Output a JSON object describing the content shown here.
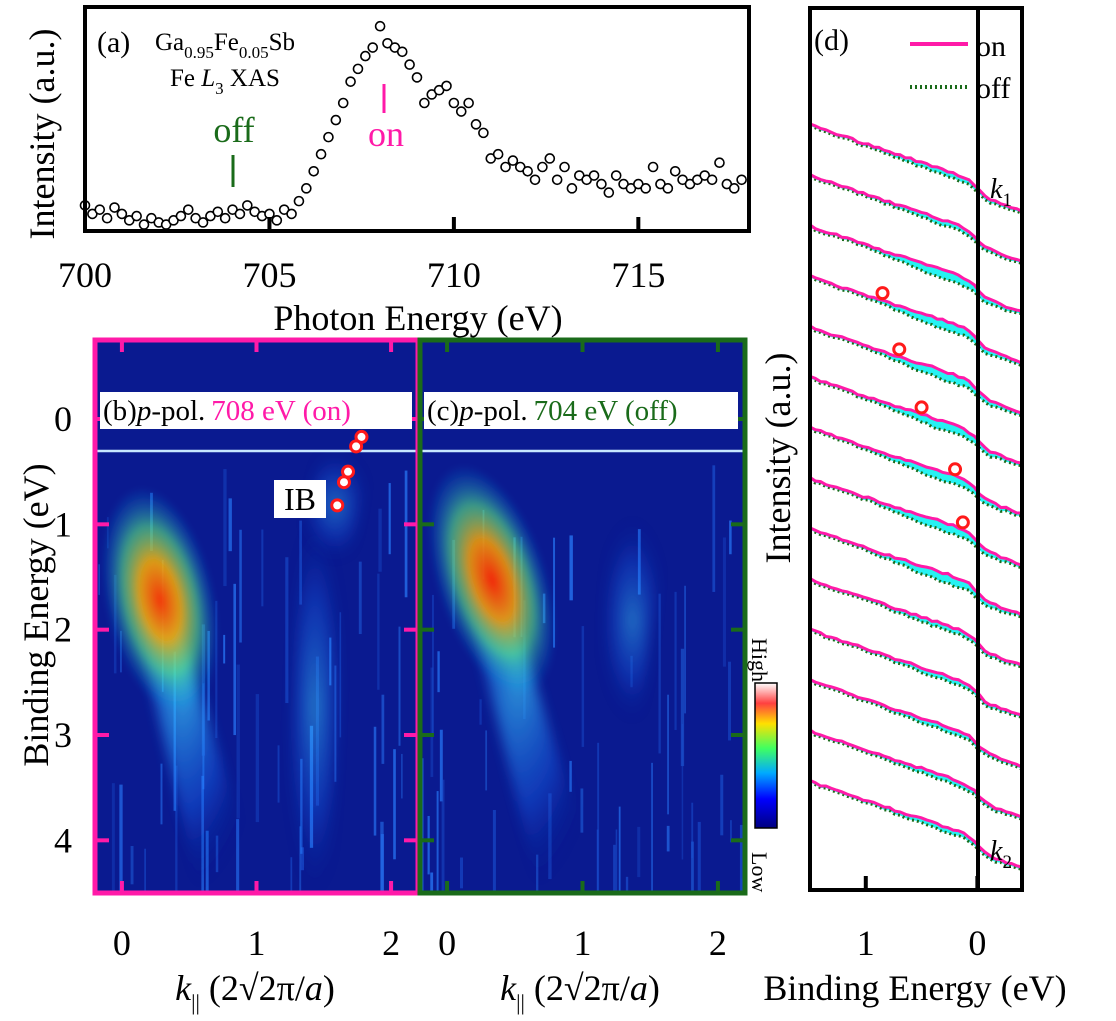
{
  "figure": {
    "panel_a": {
      "tag": "(a)",
      "sample": {
        "p1": "Ga",
        "s1": "0.95",
        "p2": "Fe",
        "s2": "0.05",
        "p3": "Sb"
      },
      "measurement": {
        "p1": "Fe ",
        "italic": "L",
        "sub": "3",
        "p2": " XAS"
      },
      "marker_off": "off",
      "marker_on": "on",
      "ylabel": "Intensity (a.u.)",
      "xlabel": "Photon Energy (eV)"
    },
    "panel_b": {
      "tag": "(b)",
      "pol": "p",
      "pol_suffix": "-pol.",
      "energy": "708 eV (on)",
      "annotation": "IB",
      "frame_color": "#ff1aa8"
    },
    "panel_c": {
      "tag": "(c)",
      "pol": "p",
      "pol_suffix": "-pol.",
      "energy": "704 eV (off)",
      "frame_color": "#1a6b1a"
    },
    "maps_axes": {
      "ylabel": "Binding Energy (eV)",
      "xlabel": {
        "k": "k",
        "sub": "||",
        "rest": " (2√2π/",
        "a": "a",
        "close": ")"
      },
      "colorbar_high": "High",
      "colorbar_low": "Low"
    },
    "panel_d": {
      "tag": "(d)",
      "legend_on": "on",
      "legend_off": "off",
      "ylabel": "Intensity (a.u.)",
      "xlabel": "Binding Energy (eV)",
      "label_k1": "k",
      "label_k1_sub": "1",
      "label_k2": "k",
      "label_k2_sub": "2"
    }
  },
  "colors": {
    "on": "#ff1aa8",
    "off": "#1a6b1a",
    "fill": "#00f0f0",
    "marker": "#ff1a1a",
    "map_background": "#0a1a90"
  },
  "chart_data": [
    {
      "id": "panel-a-xas",
      "type": "scatter",
      "xlabel": "Photon Energy (eV)",
      "ylabel": "Intensity (a.u.)",
      "xlim": [
        700,
        718
      ],
      "ylim": [
        0,
        1.05
      ],
      "xticks": [
        700,
        705,
        710,
        715
      ],
      "x": [
        700,
        700.2,
        700.4,
        700.6,
        700.8,
        701,
        701.2,
        701.4,
        701.6,
        701.8,
        702,
        702.2,
        702.4,
        702.6,
        702.8,
        703,
        703.2,
        703.4,
        703.6,
        703.8,
        704,
        704.2,
        704.4,
        704.6,
        704.8,
        705,
        705.2,
        705.4,
        705.6,
        705.8,
        706,
        706.2,
        706.4,
        706.6,
        706.8,
        707,
        707.2,
        707.4,
        707.6,
        707.8,
        708,
        708.2,
        708.4,
        708.6,
        708.8,
        709,
        709.2,
        709.4,
        709.6,
        709.8,
        710,
        710.2,
        710.4,
        710.6,
        710.8,
        711,
        711.2,
        711.4,
        711.6,
        711.8,
        712,
        712.2,
        712.4,
        712.6,
        712.8,
        713,
        713.2,
        713.4,
        713.6,
        713.8,
        714,
        714.2,
        714.4,
        714.6,
        714.8,
        715,
        715.2,
        715.4,
        715.6,
        715.8,
        716,
        716.2,
        716.4,
        716.6,
        716.8,
        717,
        717.2,
        717.4,
        717.6,
        717.8
      ],
      "y": [
        0.12,
        0.08,
        0.1,
        0.06,
        0.11,
        0.08,
        0.05,
        0.07,
        0.03,
        0.06,
        0.04,
        0.03,
        0.05,
        0.07,
        0.1,
        0.06,
        0.04,
        0.07,
        0.09,
        0.06,
        0.1,
        0.08,
        0.12,
        0.09,
        0.07,
        0.08,
        0.05,
        0.1,
        0.08,
        0.14,
        0.2,
        0.28,
        0.36,
        0.44,
        0.52,
        0.6,
        0.7,
        0.76,
        0.82,
        0.86,
        0.96,
        0.88,
        0.86,
        0.84,
        0.78,
        0.72,
        0.6,
        0.64,
        0.66,
        0.68,
        0.6,
        0.56,
        0.6,
        0.5,
        0.46,
        0.34,
        0.36,
        0.3,
        0.33,
        0.3,
        0.28,
        0.24,
        0.3,
        0.34,
        0.24,
        0.3,
        0.2,
        0.26,
        0.24,
        0.26,
        0.22,
        0.18,
        0.26,
        0.22,
        0.2,
        0.22,
        0.2,
        0.3,
        0.22,
        0.2,
        0.28,
        0.24,
        0.22,
        0.24,
        0.26,
        0.24,
        0.32,
        0.22,
        0.2,
        0.24
      ]
    },
    {
      "id": "panel-b-arpes-on",
      "type": "heatmap",
      "xlabel": "k|| (2√2π/a)",
      "ylabel": "Binding Energy (eV)",
      "xlim": [
        -0.2,
        2.2
      ],
      "ylim": [
        4.5,
        -0.75
      ],
      "xticks": [
        0,
        1,
        2
      ],
      "yticks": [
        0,
        1,
        2,
        3,
        4
      ],
      "colorscale": [
        "Low",
        "High"
      ],
      "features": [
        {
          "name": "main-band-spot",
          "k": 0.42,
          "E": 1.7,
          "intensity": 1.0
        },
        {
          "name": "band-arm-left",
          "k": 0.2,
          "E": 0.7,
          "intensity": 0.55
        },
        {
          "name": "band-arm-right",
          "k": 1.55,
          "E": 1.0,
          "intensity": 0.45
        }
      ],
      "ib_points": [
        {
          "k": 1.78,
          "E": 0.17
        },
        {
          "k": 1.74,
          "E": 0.26
        },
        {
          "k": 1.68,
          "E": 0.5
        },
        {
          "k": 1.65,
          "E": 0.6
        },
        {
          "k": 1.6,
          "E": 0.82
        }
      ]
    },
    {
      "id": "panel-c-arpes-off",
      "type": "heatmap",
      "xlabel": "k|| (2√2π/a)",
      "ylabel": "Binding Energy (eV)",
      "xlim": [
        -0.2,
        2.2
      ],
      "ylim": [
        4.5,
        -0.75
      ],
      "xticks": [
        0,
        1,
        2
      ],
      "yticks": [
        0,
        1,
        2,
        3,
        4
      ],
      "colorscale": [
        "Low",
        "High"
      ],
      "features": [
        {
          "name": "main-band-spot",
          "k": 0.5,
          "E": 1.5,
          "intensity": 1.0
        },
        {
          "name": "band-arm-left",
          "k": 0.25,
          "E": 0.5,
          "intensity": 0.5
        },
        {
          "name": "band-arm-right",
          "k": 1.45,
          "E": 1.5,
          "intensity": 0.4
        }
      ]
    },
    {
      "id": "panel-d-edc",
      "type": "line",
      "xlabel": "Binding Energy (eV)",
      "ylabel": "Intensity (a.u.)",
      "xlim": [
        1.5,
        -0.4
      ],
      "xticks": [
        1,
        0
      ],
      "series": [
        {
          "name": "on",
          "style": "solid"
        },
        {
          "name": "off",
          "style": "dotted"
        }
      ],
      "n_curves": 14,
      "ib_markers": [
        {
          "curve": 3,
          "E": 0.85
        },
        {
          "curve": 4,
          "E": 0.7
        },
        {
          "curve": 5,
          "E": 0.5
        },
        {
          "curve": 6,
          "E": 0.2
        },
        {
          "curve": 7,
          "E": 0.13
        }
      ]
    }
  ]
}
